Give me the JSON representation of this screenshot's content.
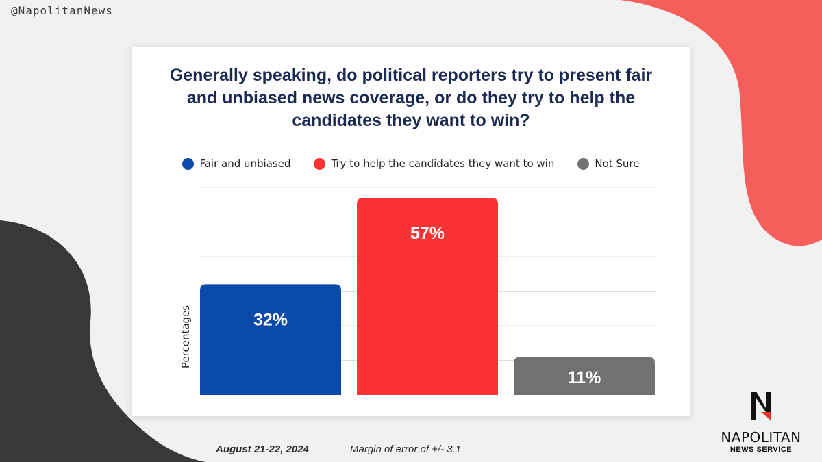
{
  "handle": "@NapolitanNews",
  "chart_data": {
    "type": "bar",
    "title": "Generally speaking, do political reporters try to present fair and unbiased news coverage, or do they try to help the candidates they want to win?",
    "ylabel": "Percentages",
    "ylim": [
      0,
      60
    ],
    "grid": true,
    "legend_position": "top",
    "categories": [
      "Fair and unbiased",
      "Try to help the candidates they want to win",
      "Not Sure"
    ],
    "values": [
      32,
      57,
      11
    ],
    "data_labels": [
      "32%",
      "57%",
      "11%"
    ],
    "colors": [
      "#0b4aa8",
      "#f93233",
      "#717171"
    ]
  },
  "footer": {
    "date": "August 21-22, 2024",
    "margin_of_error": "Margin of error of +/- 3.1"
  },
  "logo": {
    "name": "NAPOLITAN",
    "subtitle": "NEWS SERVICE"
  },
  "colors": {
    "background": "#f1f1f1",
    "accent_coral": "#f65e5b",
    "dark_shape": "#383838",
    "title": "#1b2a52"
  }
}
